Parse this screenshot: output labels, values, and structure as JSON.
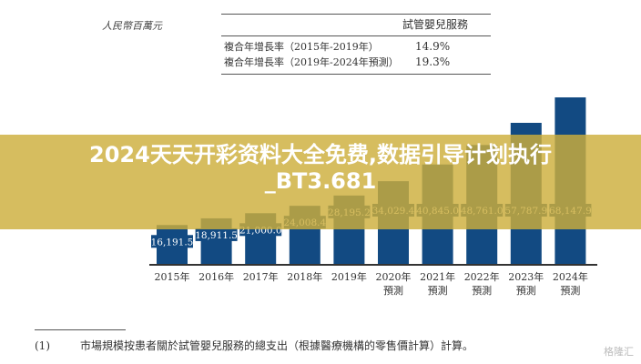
{
  "unit_label": "人民幣百萬元",
  "cagr_table": {
    "header": "試管嬰兒服務",
    "rows": [
      {
        "label": "複合年增長率（2015年-2019年）",
        "value": "14.9%"
      },
      {
        "label": "複合年增長率（2019年-2024年預測）",
        "value": "19.3%"
      }
    ]
  },
  "chart_data": {
    "type": "bar",
    "title": "",
    "xlabel": "",
    "ylabel": "",
    "categories": [
      "2015年",
      "2016年",
      "2017年",
      "2018年",
      "2019年",
      "2020年\n預測",
      "2021年\n預測",
      "2022年\n預測",
      "2023年\n預測",
      "2024年\n預測"
    ],
    "values": [
      16191.5,
      18911.5,
      21000.0,
      24008.4,
      28195.2,
      34029.4,
      40845.0,
      48761.0,
      57787.9,
      68147.9
    ],
    "data_labels": [
      "16,191.5",
      "18,911.5",
      "21,000.0",
      "24,008.4",
      "28,195.2",
      "34,029.4",
      "40,845.0",
      "48,761.0",
      "57,787.9",
      "68,147.9"
    ],
    "ylim": [
      0,
      70000
    ],
    "grid": false,
    "bar_color": "#124a82"
  },
  "footnote": {
    "number": "(1)",
    "text": "市場規模按患者關於試管嬰兒服務的總支出（根據醫療機構的零售價計算）計算。"
  },
  "banner": {
    "text": "2024天天开彩资料大全免费,数据引导计划执行_BT3.681"
  },
  "watermark": "格隆汇"
}
